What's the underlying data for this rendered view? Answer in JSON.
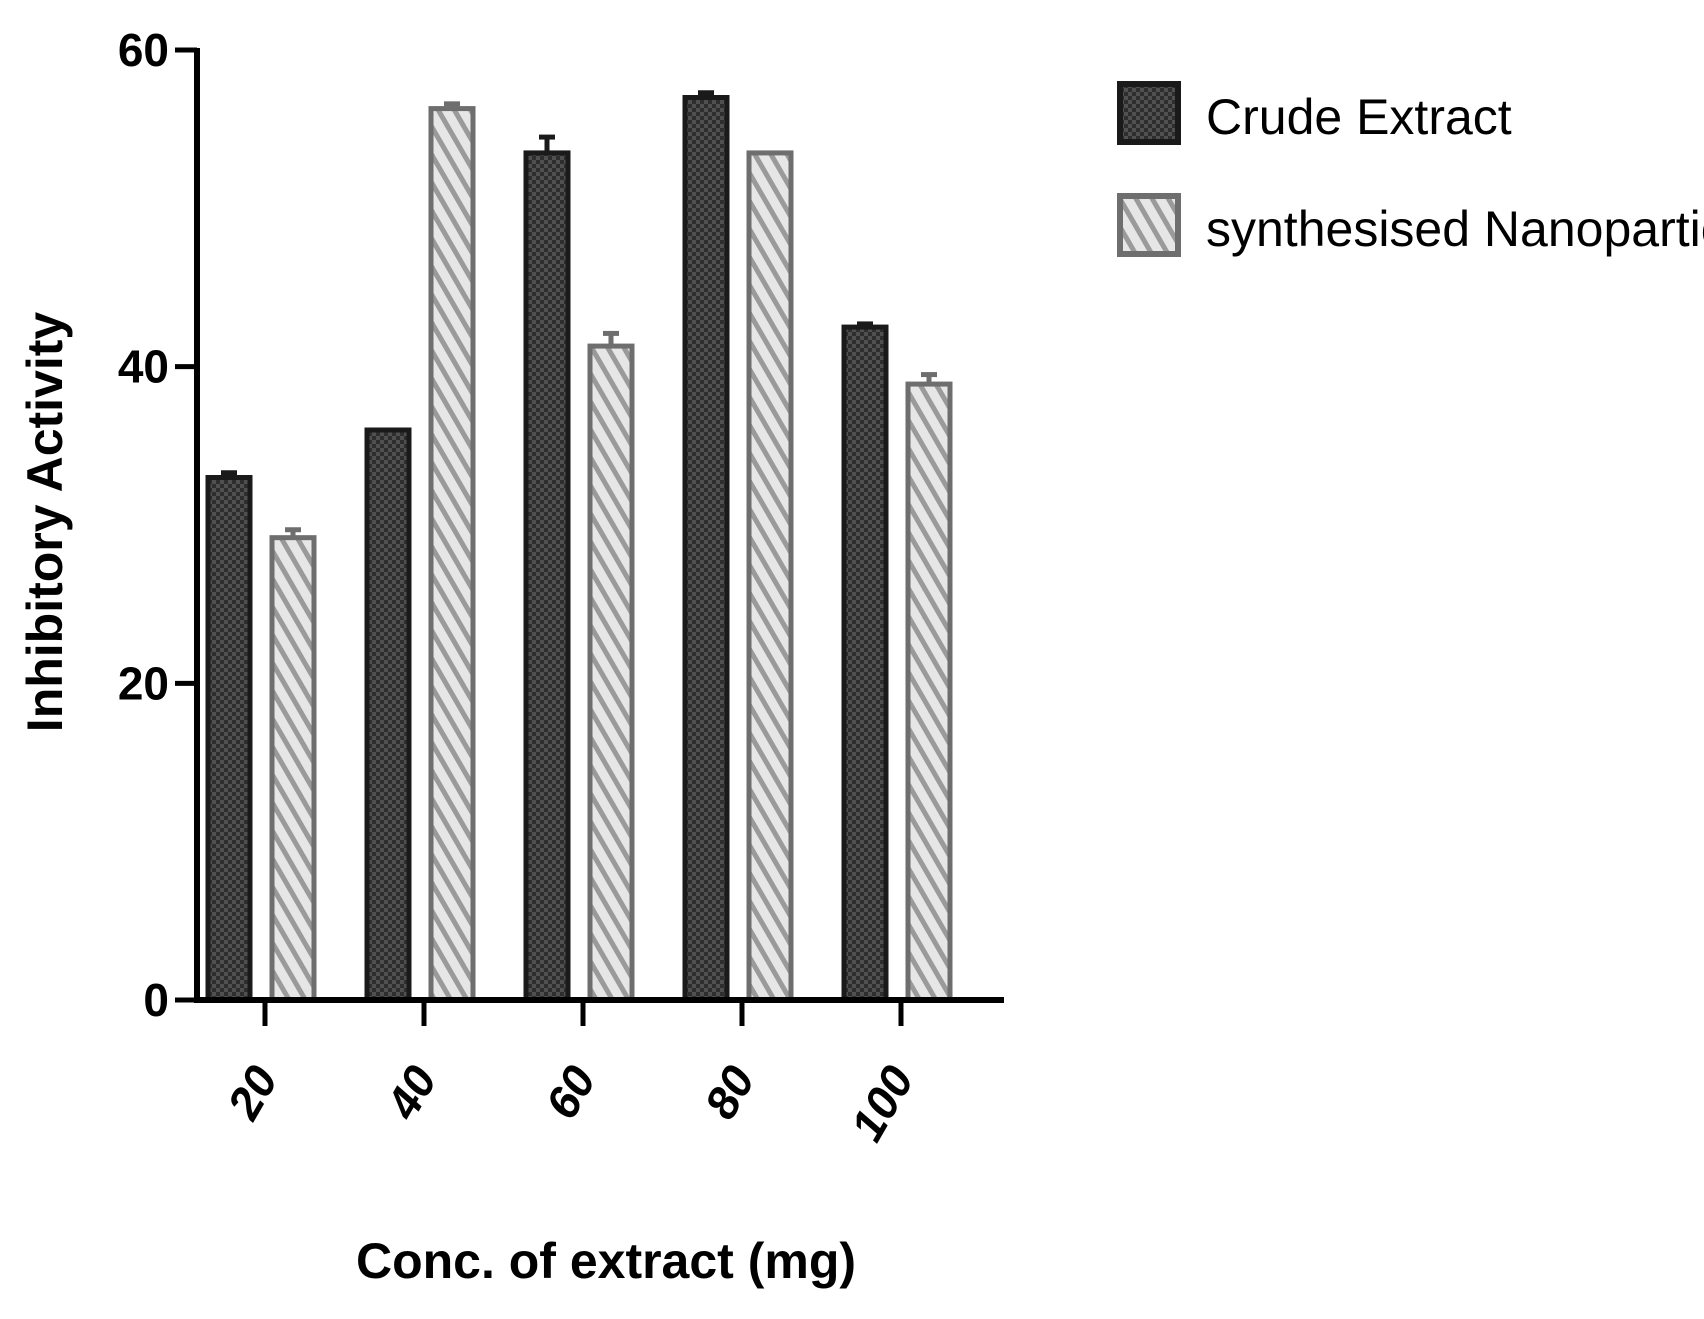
{
  "chart_data": {
    "type": "bar",
    "categories": [
      "20",
      "40",
      "60",
      "80",
      "100"
    ],
    "series": [
      {
        "name": "Crude Extract",
        "values": [
          33,
          36,
          53.5,
          57,
          42.5
        ],
        "errors": [
          0.3,
          0,
          1,
          0.3,
          0.2
        ]
      },
      {
        "name": "synthesised Nanoparticle",
        "values": [
          29.2,
          56.3,
          41.3,
          53.5,
          38.9
        ],
        "errors": [
          0.5,
          0.3,
          0.8,
          0,
          0.6
        ]
      }
    ],
    "xlabel": "Conc. of extract (mg)",
    "ylabel": "Inhibitory Activity",
    "ylim": [
      0,
      60
    ],
    "yticks": [
      0,
      20,
      40,
      60
    ],
    "grid": false,
    "legend_position": "top-right",
    "colors": {
      "crude_fill": "#4a4a4a",
      "crude_stroke": "#1a1a1a",
      "nano_fill": "#cfcfcf",
      "nano_stroke": "#6e6e6e",
      "axis": "#000000"
    }
  }
}
